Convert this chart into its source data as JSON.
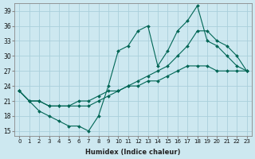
{
  "xlabel": "Humidex (Indice chaleur)",
  "bg_color": "#cde8f0",
  "grid_color": "#aacfdb",
  "line_color": "#006655",
  "xlim_min": -0.5,
  "xlim_max": 23.5,
  "ylim_min": 14,
  "ylim_max": 40.5,
  "xticks": [
    0,
    1,
    2,
    3,
    4,
    5,
    6,
    7,
    8,
    9,
    10,
    11,
    12,
    13,
    14,
    15,
    16,
    17,
    18,
    19,
    20,
    21,
    22,
    23
  ],
  "yticks": [
    15,
    18,
    21,
    24,
    27,
    30,
    33,
    36,
    39
  ],
  "line1_x": [
    0,
    1,
    2,
    3,
    4,
    5,
    6,
    7,
    8,
    9,
    10,
    11,
    12,
    13,
    14,
    15,
    16,
    17,
    18,
    19,
    20,
    21,
    22,
    23
  ],
  "line1_y": [
    23,
    21,
    19,
    18,
    17,
    16,
    16,
    15,
    18,
    24,
    31,
    32,
    35,
    36,
    28,
    31,
    35,
    37,
    40,
    33,
    32,
    30,
    28,
    27
  ],
  "line2_x": [
    0,
    1,
    2,
    3,
    4,
    5,
    6,
    7,
    8,
    9,
    10,
    11,
    12,
    13,
    14,
    15,
    16,
    17,
    18,
    19,
    20,
    21,
    22,
    23
  ],
  "line2_y": [
    23,
    21,
    21,
    20,
    20,
    20,
    20,
    20,
    21,
    22,
    23,
    24,
    25,
    26,
    27,
    28,
    30,
    32,
    35,
    35,
    33,
    32,
    30,
    27
  ],
  "line3_x": [
    0,
    1,
    2,
    3,
    4,
    5,
    6,
    7,
    8,
    9,
    10,
    11,
    12,
    13,
    14,
    15,
    16,
    17,
    18,
    19,
    20,
    21,
    22,
    23
  ],
  "line3_y": [
    23,
    21,
    21,
    20,
    20,
    20,
    21,
    21,
    22,
    23,
    23,
    24,
    24,
    25,
    25,
    26,
    27,
    28,
    28,
    28,
    27,
    27,
    27,
    27
  ]
}
